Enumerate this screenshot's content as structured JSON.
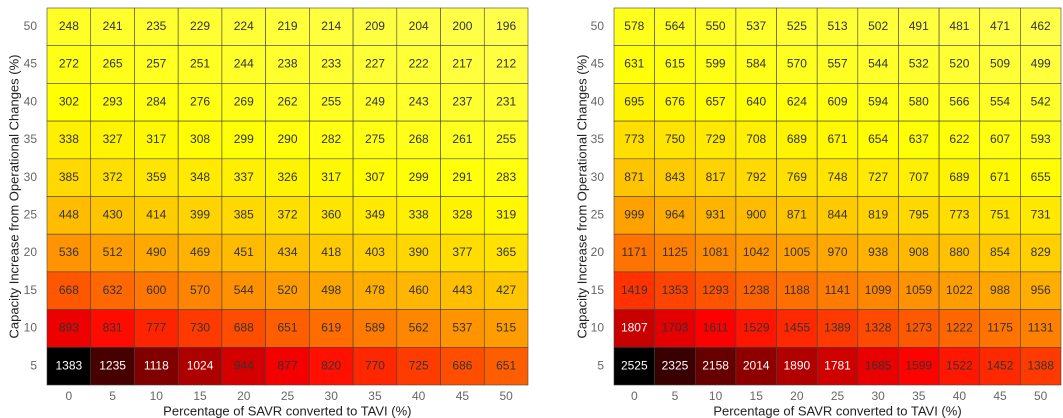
{
  "chart_data": [
    {
      "type": "heatmap",
      "colormap": "hot_r",
      "xlabel": "Percentage of SAVR converted to TAVI (%)",
      "ylabel": "Capacity Increase from Operational Changes (%)",
      "x": [
        0,
        5,
        10,
        15,
        20,
        25,
        30,
        35,
        40,
        45,
        50
      ],
      "y": [
        50,
        45,
        40,
        35,
        30,
        25,
        20,
        15,
        10,
        5
      ],
      "values": [
        [
          248,
          241,
          235,
          229,
          224,
          219,
          214,
          209,
          204,
          200,
          196
        ],
        [
          272,
          265,
          257,
          251,
          244,
          238,
          233,
          227,
          222,
          217,
          212
        ],
        [
          302,
          293,
          284,
          276,
          269,
          262,
          255,
          249,
          243,
          237,
          231
        ],
        [
          338,
          327,
          317,
          308,
          299,
          290,
          282,
          275,
          268,
          261,
          255
        ],
        [
          385,
          372,
          359,
          348,
          337,
          326,
          317,
          307,
          299,
          291,
          283
        ],
        [
          448,
          430,
          414,
          399,
          385,
          372,
          360,
          349,
          338,
          328,
          319
        ],
        [
          536,
          512,
          490,
          469,
          451,
          434,
          418,
          403,
          390,
          377,
          365
        ],
        [
          668,
          632,
          600,
          570,
          544,
          520,
          498,
          478,
          460,
          443,
          427
        ],
        [
          893,
          831,
          777,
          730,
          688,
          651,
          619,
          589,
          562,
          537,
          515
        ],
        [
          1383,
          1235,
          1118,
          1024,
          944,
          877,
          820,
          770,
          725,
          686,
          651
        ]
      ]
    },
    {
      "type": "heatmap",
      "colormap": "hot_r",
      "xlabel": "Percentage of SAVR converted to TAVI (%)",
      "ylabel": "Capacity Increase from Operational Changes (%)",
      "x": [
        0,
        5,
        10,
        15,
        20,
        25,
        30,
        35,
        40,
        45,
        50
      ],
      "y": [
        50,
        45,
        40,
        35,
        30,
        25,
        20,
        15,
        10,
        5
      ],
      "values": [
        [
          578,
          564,
          550,
          537,
          525,
          513,
          502,
          491,
          481,
          471,
          462
        ],
        [
          631,
          615,
          599,
          584,
          570,
          557,
          544,
          532,
          520,
          509,
          499
        ],
        [
          695,
          676,
          657,
          640,
          624,
          609,
          594,
          580,
          566,
          554,
          542
        ],
        [
          773,
          750,
          729,
          708,
          689,
          671,
          654,
          637,
          622,
          607,
          593
        ],
        [
          871,
          843,
          817,
          792,
          769,
          748,
          727,
          707,
          689,
          671,
          655
        ],
        [
          999,
          964,
          931,
          900,
          871,
          844,
          819,
          795,
          773,
          751,
          731
        ],
        [
          1171,
          1125,
          1081,
          1042,
          1005,
          970,
          938,
          908,
          880,
          854,
          829
        ],
        [
          1419,
          1353,
          1293,
          1238,
          1188,
          1141,
          1099,
          1059,
          1022,
          988,
          956
        ],
        [
          1807,
          1703,
          1611,
          1529,
          1455,
          1389,
          1328,
          1273,
          1222,
          1175,
          1131
        ],
        [
          2525,
          2325,
          2158,
          2014,
          1890,
          1781,
          1685,
          1599,
          1522,
          1452,
          1388
        ]
      ]
    }
  ]
}
